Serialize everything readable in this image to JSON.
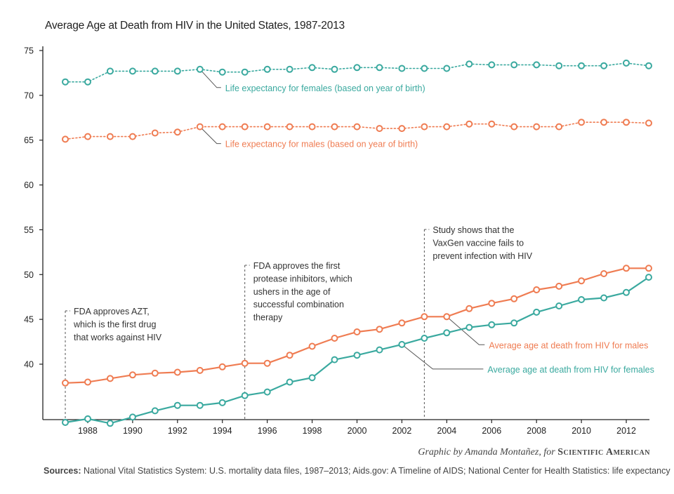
{
  "title": "Average Age at Death from HIV in the United States, 1987-2013",
  "credit": {
    "by": "Graphic by Amanda Montañez, for ",
    "brand": "Scientific American"
  },
  "sources": {
    "label": "Sources:",
    "text": " National Vital Statistics System: U.S. mortality data files, 1987–2013; Aids.gov: A Timeline of AIDS; National Center for Health Statistics: life expectancy"
  },
  "colors": {
    "teal": "#3aa99f",
    "orange": "#ef7c52",
    "axis": "#222222",
    "annotation_line": "#555555"
  },
  "chart_data": {
    "type": "line",
    "title": "Average Age at Death from HIV in the United States, 1987-2013",
    "xlabel": "",
    "ylabel": "",
    "xlim": [
      1987,
      2013
    ],
    "ylim": [
      35,
      75
    ],
    "grid": false,
    "x": [
      1987,
      1988,
      1989,
      1990,
      1991,
      1992,
      1993,
      1994,
      1995,
      1996,
      1997,
      1998,
      1999,
      2000,
      2001,
      2002,
      2003,
      2004,
      2005,
      2006,
      2007,
      2008,
      2009,
      2010,
      2011,
      2012,
      2013
    ],
    "x_ticks": [
      1988,
      1990,
      1992,
      1994,
      1996,
      1998,
      2000,
      2002,
      2004,
      2006,
      2008,
      2010,
      2012
    ],
    "y_ticks": [
      40,
      45,
      50,
      55,
      60,
      65,
      70,
      75
    ],
    "series": [
      {
        "id": "le_female",
        "name": "Life expectancy for females (based on year of birth)",
        "color": "teal",
        "style": "dotted",
        "values": [
          71.5,
          71.5,
          72.7,
          72.7,
          72.7,
          72.7,
          72.9,
          72.6,
          72.6,
          72.9,
          72.9,
          73.1,
          72.9,
          73.1,
          73.1,
          73.0,
          73.0,
          73.0,
          73.5,
          73.4,
          73.4,
          73.4,
          73.3,
          73.3,
          73.3,
          73.6,
          73.3
        ]
      },
      {
        "id": "le_male",
        "name": "Life expectancy for males (based on year of birth)",
        "color": "orange",
        "style": "dotted",
        "values": [
          65.1,
          65.4,
          65.4,
          65.4,
          65.8,
          65.9,
          66.5,
          66.5,
          66.5,
          66.5,
          66.5,
          66.5,
          66.5,
          66.5,
          66.3,
          66.3,
          66.5,
          66.5,
          66.8,
          66.8,
          66.5,
          66.5,
          66.5,
          67.0,
          67.0,
          67.0,
          66.9
        ]
      },
      {
        "id": "hiv_male",
        "name": "Average age at death from HIV for males",
        "color": "orange",
        "style": "solid",
        "values": [
          37.9,
          38.0,
          38.4,
          38.8,
          39.0,
          39.1,
          39.3,
          39.7,
          40.1,
          40.1,
          41.0,
          42.0,
          42.9,
          43.6,
          43.9,
          44.6,
          45.3,
          45.3,
          46.2,
          46.8,
          47.3,
          48.3,
          48.7,
          49.3,
          50.1,
          50.7,
          50.7
        ]
      },
      {
        "id": "hiv_female",
        "name": "Average age at death from HIV for females",
        "color": "teal",
        "style": "solid",
        "values": [
          33.5,
          33.9,
          33.4,
          34.1,
          34.8,
          35.4,
          35.4,
          35.7,
          36.5,
          36.9,
          38.0,
          38.5,
          40.5,
          41.0,
          41.6,
          42.2,
          42.9,
          43.5,
          44.1,
          44.4,
          44.6,
          45.8,
          46.5,
          47.2,
          47.4,
          48.0,
          49.7
        ]
      }
    ],
    "events": [
      {
        "year": 1987,
        "text": [
          "FDA approves AZT,",
          "which is the first drug",
          "that works against HIV"
        ]
      },
      {
        "year": 1995,
        "text": [
          "FDA approves the first",
          "protease inhibitors, which",
          "ushers in the age of",
          "successful combination",
          "therapy"
        ]
      },
      {
        "year": 2003,
        "text": [
          "Study shows that the",
          "VaxGen vaccine fails to",
          "prevent infection with HIV"
        ]
      }
    ]
  }
}
